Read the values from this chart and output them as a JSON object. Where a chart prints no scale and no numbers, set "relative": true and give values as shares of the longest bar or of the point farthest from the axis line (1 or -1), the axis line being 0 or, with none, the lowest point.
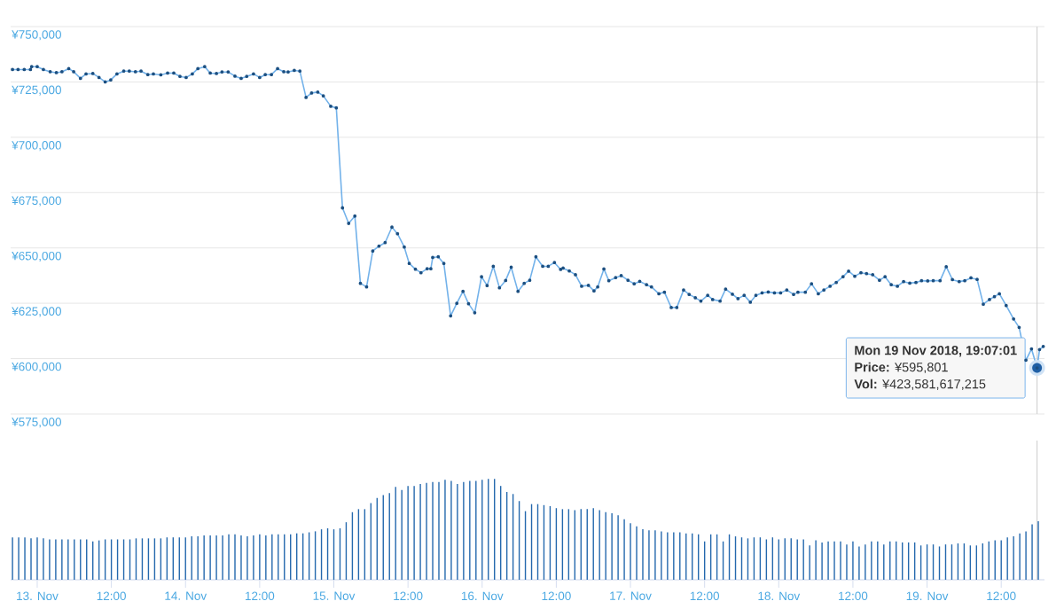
{
  "chart_data": [
    {
      "type": "line",
      "xlim": [
        "2018-11-12T19:42",
        "2018-11-19T19:00"
      ],
      "ylim": [
        575000,
        750000
      ],
      "yticks": [
        {
          "value": 575000,
          "label": "¥575,000"
        },
        {
          "value": 600000,
          "label": "¥600,000"
        },
        {
          "value": 625000,
          "label": "¥625,000"
        },
        {
          "value": 650000,
          "label": "¥650,000"
        },
        {
          "value": 675000,
          "label": "¥675,000"
        },
        {
          "value": 700000,
          "label": "¥700,000"
        },
        {
          "value": 725000,
          "label": "¥725,000"
        },
        {
          "value": 750000,
          "label": "¥750,000"
        }
      ],
      "tick_labels": "y",
      "grid": "y",
      "marker": "circle",
      "line_style": "solid",
      "series": [
        {
          "color": "#73b2ea",
          "x": [
            "2018-11-12T20:00",
            "2018-11-12T20:54",
            "2018-11-12T21:54",
            "2018-11-12T22:54",
            "2018-11-12T23:06",
            "2018-11-13T00:00",
            "2018-11-13T01:00",
            "2018-11-13T02:06",
            "2018-11-13T03:06",
            "2018-11-13T04:00",
            "2018-11-13T05:06",
            "2018-11-13T05:54",
            "2018-11-13T07:00",
            "2018-11-13T07:54",
            "2018-11-13T09:00",
            "2018-11-13T10:00",
            "2018-11-13T11:00",
            "2018-11-13T11:54",
            "2018-11-13T12:54",
            "2018-11-13T14:00",
            "2018-11-13T14:54",
            "2018-11-13T15:54",
            "2018-11-13T16:48",
            "2018-11-13T17:54",
            "2018-11-13T18:48",
            "2018-11-13T20:00",
            "2018-11-13T21:06",
            "2018-11-13T22:06",
            "2018-11-13T23:06",
            "2018-11-14T00:06",
            "2018-11-14T01:06",
            "2018-11-14T02:00",
            "2018-11-14T03:06",
            "2018-11-14T04:00",
            "2018-11-14T05:00",
            "2018-11-14T05:54",
            "2018-11-14T06:54",
            "2018-11-14T08:00",
            "2018-11-14T09:00",
            "2018-11-14T09:54",
            "2018-11-14T11:00",
            "2018-11-14T12:00",
            "2018-11-14T12:54",
            "2018-11-14T13:54",
            "2018-11-14T14:54",
            "2018-11-14T15:54",
            "2018-11-14T16:36",
            "2018-11-14T17:36",
            "2018-11-14T18:30",
            "2018-11-14T19:30",
            "2018-11-14T20:24",
            "2018-11-14T21:24",
            "2018-11-14T22:18",
            "2018-11-14T23:30",
            "2018-11-15T00:24",
            "2018-11-15T01:24",
            "2018-11-15T02:24",
            "2018-11-15T03:24",
            "2018-11-15T04:18",
            "2018-11-15T05:18",
            "2018-11-15T06:18",
            "2018-11-15T07:18",
            "2018-11-15T08:18",
            "2018-11-15T09:24",
            "2018-11-15T10:18",
            "2018-11-15T11:24",
            "2018-11-15T12:12",
            "2018-11-15T13:12",
            "2018-11-15T14:06",
            "2018-11-15T15:06",
            "2018-11-15T15:42",
            "2018-11-15T16:00",
            "2018-11-15T16:54",
            "2018-11-15T17:48",
            "2018-11-15T18:54",
            "2018-11-15T19:54",
            "2018-11-15T20:54",
            "2018-11-15T21:48",
            "2018-11-15T22:48",
            "2018-11-15T23:54",
            "2018-11-16T00:48",
            "2018-11-16T01:48",
            "2018-11-16T02:48",
            "2018-11-16T03:48",
            "2018-11-16T04:42",
            "2018-11-16T05:48",
            "2018-11-16T06:48",
            "2018-11-16T07:42",
            "2018-11-16T08:42",
            "2018-11-16T09:48",
            "2018-11-16T10:42",
            "2018-11-16T11:42",
            "2018-11-16T12:42",
            "2018-11-16T13:06",
            "2018-11-16T14:06",
            "2018-11-16T15:06",
            "2018-11-16T16:06",
            "2018-11-16T17:12",
            "2018-11-16T18:06",
            "2018-11-16T18:42",
            "2018-11-16T19:42",
            "2018-11-16T20:30",
            "2018-11-16T21:36",
            "2018-11-16T22:30",
            "2018-11-16T23:36",
            "2018-11-17T00:36",
            "2018-11-17T01:30",
            "2018-11-17T02:36",
            "2018-11-17T03:24",
            "2018-11-17T04:36",
            "2018-11-17T05:30",
            "2018-11-17T06:36",
            "2018-11-17T07:30",
            "2018-11-17T08:36",
            "2018-11-17T09:30",
            "2018-11-17T10:30",
            "2018-11-17T11:24",
            "2018-11-17T12:30",
            "2018-11-17T13:18",
            "2018-11-17T14:30",
            "2018-11-17T15:24",
            "2018-11-17T16:30",
            "2018-11-17T17:24",
            "2018-11-17T18:24",
            "2018-11-17T19:24",
            "2018-11-17T20:18",
            "2018-11-17T21:18",
            "2018-11-17T22:18",
            "2018-11-17T23:18",
            "2018-11-18T00:18",
            "2018-11-18T01:18",
            "2018-11-18T02:24",
            "2018-11-18T03:06",
            "2018-11-18T04:18",
            "2018-11-18T05:18",
            "2018-11-18T06:24",
            "2018-11-18T07:18",
            "2018-11-18T08:18",
            "2018-11-18T09:18",
            "2018-11-18T10:24",
            "2018-11-18T11:18",
            "2018-11-18T12:18",
            "2018-11-18T13:18",
            "2018-11-18T14:12",
            "2018-11-18T15:12",
            "2018-11-18T16:18",
            "2018-11-18T17:12",
            "2018-11-18T18:12",
            "2018-11-18T19:12",
            "2018-11-18T20:12",
            "2018-11-18T21:12",
            "2018-11-18T22:12",
            "2018-11-18T23:06",
            "2018-11-19T00:06",
            "2018-11-19T01:00",
            "2018-11-19T02:06",
            "2018-11-19T03:06",
            "2018-11-19T04:06",
            "2018-11-19T05:12",
            "2018-11-19T06:06",
            "2018-11-19T07:06",
            "2018-11-19T08:06",
            "2018-11-19T09:06",
            "2018-11-19T10:06",
            "2018-11-19T10:54",
            "2018-11-19T11:42",
            "2018-11-19T12:48",
            "2018-11-19T14:00",
            "2018-11-19T14:54",
            "2018-11-19T16:00",
            "2018-11-19T16:54",
            "2018-11-19T17:48",
            "2018-11-19T18:12",
            "2018-11-19T18:48"
          ],
          "values": [
            730600,
            730600,
            730600,
            730600,
            731900,
            731900,
            730600,
            729600,
            729200,
            729600,
            731000,
            729600,
            726600,
            728600,
            728800,
            727000,
            725000,
            725900,
            728600,
            729900,
            729900,
            729600,
            729900,
            728300,
            728600,
            728200,
            729000,
            729000,
            727500,
            727000,
            728600,
            731000,
            731900,
            729000,
            728800,
            729500,
            729500,
            727600,
            726600,
            727500,
            728600,
            727000,
            728300,
            728300,
            731000,
            729600,
            729500,
            730200,
            729900,
            718000,
            720000,
            720400,
            718700,
            714000,
            713300,
            668100,
            661100,
            664400,
            634000,
            632400,
            648600,
            650800,
            652400,
            659400,
            656400,
            650400,
            643000,
            640400,
            638800,
            640600,
            640600,
            645700,
            646000,
            643000,
            619300,
            625000,
            630400,
            624800,
            620700,
            637000,
            633000,
            641700,
            632000,
            635300,
            641300,
            630400,
            634000,
            635400,
            646000,
            641700,
            641700,
            643400,
            640300,
            640900,
            639600,
            637900,
            632700,
            633100,
            630600,
            632400,
            640500,
            635200,
            636600,
            637500,
            635400,
            633800,
            634900,
            633400,
            632400,
            629300,
            630000,
            623100,
            623100,
            631000,
            629000,
            627500,
            626000,
            628600,
            626700,
            626000,
            631400,
            629100,
            627100,
            628600,
            625500,
            628600,
            629700,
            630100,
            629700,
            629700,
            631000,
            629000,
            630000,
            630000,
            633800,
            629300,
            631000,
            632700,
            634400,
            637000,
            639500,
            637200,
            638800,
            638400,
            637900,
            635400,
            637000,
            633400,
            632700,
            634800,
            634100,
            634400,
            635200,
            635100,
            635200,
            635200,
            641500,
            635700,
            634800,
            635200,
            636500,
            635800,
            624600,
            626700,
            628000,
            629300,
            624000,
            617900,
            614100,
            599300,
            604400,
            595801,
            604100,
            605500
          ]
        }
      ],
      "ref_lines": [
        {
          "axis": "x",
          "value": "2018-11-19T17:48",
          "color": "#cccccc"
        }
      ],
      "annotations": [
        {
          "text": "Mon 19 Nov 2018, 19:07:01",
          "x": "2018-11-19T17:48",
          "y": 595801
        },
        "**Price:** ¥595,801",
        "**Vol:** ¥423,581,617,215"
      ]
    },
    {
      "type": "bar",
      "relative": true,
      "color": "#2468ad",
      "xlim": [
        "2018-11-12T19:42",
        "2018-11-19T19:00"
      ],
      "xticks": [
        {
          "value": "2018-11-13T00:00",
          "label": "13. Nov"
        },
        {
          "value": "2018-11-13T12:00",
          "label": "12:00"
        },
        {
          "value": "2018-11-14T00:00",
          "label": "14. Nov"
        },
        {
          "value": "2018-11-14T12:00",
          "label": "12:00"
        },
        {
          "value": "2018-11-15T00:00",
          "label": "15. Nov"
        },
        {
          "value": "2018-11-15T12:00",
          "label": "12:00"
        },
        {
          "value": "2018-11-16T00:00",
          "label": "16. Nov"
        },
        {
          "value": "2018-11-16T12:00",
          "label": "12:00"
        },
        {
          "value": "2018-11-17T00:00",
          "label": "17. Nov"
        },
        {
          "value": "2018-11-17T12:00",
          "label": "12:00"
        },
        {
          "value": "2018-11-18T00:00",
          "label": "18. Nov"
        },
        {
          "value": "2018-11-18T12:00",
          "label": "12:00"
        },
        {
          "value": "2018-11-19T00:00",
          "label": "19. Nov"
        },
        {
          "value": "2018-11-19T12:00",
          "label": "12:00"
        }
      ],
      "tick_labels": "x",
      "x": [
        "2018-11-12T20:00",
        "2018-11-12T21:00",
        "2018-11-12T22:00",
        "2018-11-12T23:00",
        "2018-11-13T00:00",
        "2018-11-13T01:00",
        "2018-11-13T02:00",
        "2018-11-13T03:00",
        "2018-11-13T04:00",
        "2018-11-13T05:00",
        "2018-11-13T06:00",
        "2018-11-13T07:00",
        "2018-11-13T08:00",
        "2018-11-13T09:00",
        "2018-11-13T10:00",
        "2018-11-13T11:00",
        "2018-11-13T12:00",
        "2018-11-13T13:00",
        "2018-11-13T14:00",
        "2018-11-13T15:00",
        "2018-11-13T16:00",
        "2018-11-13T17:00",
        "2018-11-13T18:00",
        "2018-11-13T19:00",
        "2018-11-13T20:00",
        "2018-11-13T21:00",
        "2018-11-13T22:00",
        "2018-11-13T23:00",
        "2018-11-14T00:00",
        "2018-11-14T01:00",
        "2018-11-14T02:00",
        "2018-11-14T03:00",
        "2018-11-14T04:00",
        "2018-11-14T05:00",
        "2018-11-14T06:00",
        "2018-11-14T07:00",
        "2018-11-14T08:00",
        "2018-11-14T09:00",
        "2018-11-14T10:00",
        "2018-11-14T11:00",
        "2018-11-14T12:00",
        "2018-11-14T13:00",
        "2018-11-14T14:00",
        "2018-11-14T15:00",
        "2018-11-14T16:00",
        "2018-11-14T17:00",
        "2018-11-14T18:00",
        "2018-11-14T19:00",
        "2018-11-14T20:00",
        "2018-11-14T21:00",
        "2018-11-14T22:00",
        "2018-11-14T23:00",
        "2018-11-15T00:00",
        "2018-11-15T01:00",
        "2018-11-15T02:00",
        "2018-11-15T03:00",
        "2018-11-15T04:00",
        "2018-11-15T05:00",
        "2018-11-15T06:00",
        "2018-11-15T07:00",
        "2018-11-15T08:00",
        "2018-11-15T09:00",
        "2018-11-15T10:00",
        "2018-11-15T11:00",
        "2018-11-15T12:00",
        "2018-11-15T13:00",
        "2018-11-15T14:00",
        "2018-11-15T15:00",
        "2018-11-15T16:00",
        "2018-11-15T17:00",
        "2018-11-15T18:00",
        "2018-11-15T19:00",
        "2018-11-15T20:00",
        "2018-11-15T21:00",
        "2018-11-15T22:00",
        "2018-11-15T23:00",
        "2018-11-16T00:00",
        "2018-11-16T01:00",
        "2018-11-16T02:00",
        "2018-11-16T03:00",
        "2018-11-16T04:00",
        "2018-11-16T05:00",
        "2018-11-16T06:00",
        "2018-11-16T07:00",
        "2018-11-16T08:00",
        "2018-11-16T09:00",
        "2018-11-16T10:00",
        "2018-11-16T11:00",
        "2018-11-16T12:00",
        "2018-11-16T13:00",
        "2018-11-16T14:00",
        "2018-11-16T15:00",
        "2018-11-16T16:00",
        "2018-11-16T17:00",
        "2018-11-16T18:00",
        "2018-11-16T19:00",
        "2018-11-16T20:00",
        "2018-11-16T21:00",
        "2018-11-16T22:00",
        "2018-11-16T23:00",
        "2018-11-17T00:00",
        "2018-11-17T01:00",
        "2018-11-17T02:00",
        "2018-11-17T03:00",
        "2018-11-17T04:00",
        "2018-11-17T05:00",
        "2018-11-17T06:00",
        "2018-11-17T07:00",
        "2018-11-17T08:00",
        "2018-11-17T09:00",
        "2018-11-17T10:00",
        "2018-11-17T11:00",
        "2018-11-17T12:00",
        "2018-11-17T13:00",
        "2018-11-17T14:00",
        "2018-11-17T15:00",
        "2018-11-17T16:00",
        "2018-11-17T17:00",
        "2018-11-17T18:00",
        "2018-11-17T19:00",
        "2018-11-17T20:00",
        "2018-11-17T21:00",
        "2018-11-17T22:00",
        "2018-11-17T23:00",
        "2018-11-18T00:00",
        "2018-11-18T01:00",
        "2018-11-18T02:00",
        "2018-11-18T03:00",
        "2018-11-18T04:00",
        "2018-11-18T05:00",
        "2018-11-18T06:00",
        "2018-11-18T07:00",
        "2018-11-18T08:00",
        "2018-11-18T09:00",
        "2018-11-18T10:00",
        "2018-11-18T11:00",
        "2018-11-18T12:00",
        "2018-11-18T13:00",
        "2018-11-18T14:00",
        "2018-11-18T15:00",
        "2018-11-18T16:00",
        "2018-11-18T17:00",
        "2018-11-18T18:00",
        "2018-11-18T19:00",
        "2018-11-18T20:00",
        "2018-11-18T21:00",
        "2018-11-18T22:00",
        "2018-11-18T23:00",
        "2018-11-19T00:00",
        "2018-11-19T01:00",
        "2018-11-19T02:00",
        "2018-11-19T03:00",
        "2018-11-19T04:00",
        "2018-11-19T05:00",
        "2018-11-19T06:00",
        "2018-11-19T07:00",
        "2018-11-19T08:00",
        "2018-11-19T09:00",
        "2018-11-19T10:00",
        "2018-11-19T11:00",
        "2018-11-19T12:00",
        "2018-11-19T13:00",
        "2018-11-19T14:00",
        "2018-11-19T15:00",
        "2018-11-19T16:00",
        "2018-11-19T17:00",
        "2018-11-19T18:00"
      ],
      "values": [
        0.42,
        0.42,
        0.42,
        0.41,
        0.42,
        0.41,
        0.4,
        0.4,
        0.4,
        0.4,
        0.4,
        0.4,
        0.4,
        0.38,
        0.39,
        0.4,
        0.4,
        0.4,
        0.4,
        0.4,
        0.41,
        0.41,
        0.41,
        0.41,
        0.41,
        0.42,
        0.42,
        0.42,
        0.42,
        0.43,
        0.43,
        0.44,
        0.44,
        0.44,
        0.44,
        0.45,
        0.45,
        0.44,
        0.43,
        0.44,
        0.45,
        0.44,
        0.45,
        0.45,
        0.45,
        0.45,
        0.46,
        0.46,
        0.47,
        0.48,
        0.5,
        0.51,
        0.5,
        0.51,
        0.57,
        0.67,
        0.7,
        0.7,
        0.76,
        0.81,
        0.84,
        0.86,
        0.92,
        0.89,
        0.93,
        0.93,
        0.95,
        0.96,
        0.97,
        0.97,
        0.99,
        0.98,
        0.95,
        0.97,
        0.98,
        0.98,
        0.99,
        1.0,
        1.0,
        0.93,
        0.87,
        0.85,
        0.78,
        0.68,
        0.75,
        0.75,
        0.74,
        0.73,
        0.71,
        0.7,
        0.7,
        0.69,
        0.7,
        0.7,
        0.71,
        0.69,
        0.67,
        0.66,
        0.64,
        0.6,
        0.56,
        0.53,
        0.5,
        0.49,
        0.49,
        0.48,
        0.47,
        0.47,
        0.47,
        0.46,
        0.46,
        0.45,
        0.38,
        0.45,
        0.45,
        0.38,
        0.45,
        0.43,
        0.42,
        0.41,
        0.42,
        0.42,
        0.4,
        0.42,
        0.4,
        0.41,
        0.41,
        0.4,
        0.4,
        0.34,
        0.39,
        0.37,
        0.38,
        0.38,
        0.38,
        0.35,
        0.38,
        0.33,
        0.35,
        0.38,
        0.38,
        0.35,
        0.38,
        0.38,
        0.37,
        0.37,
        0.37,
        0.34,
        0.35,
        0.35,
        0.33,
        0.35,
        0.35,
        0.36,
        0.36,
        0.34,
        0.34,
        0.36,
        0.38,
        0.39,
        0.39,
        0.42,
        0.43,
        0.46,
        0.48,
        0.55,
        0.58
      ],
      "ref_lines": [
        {
          "axis": "x",
          "value": "2018-11-19T17:48",
          "color": "#cccccc"
        }
      ]
    }
  ]
}
